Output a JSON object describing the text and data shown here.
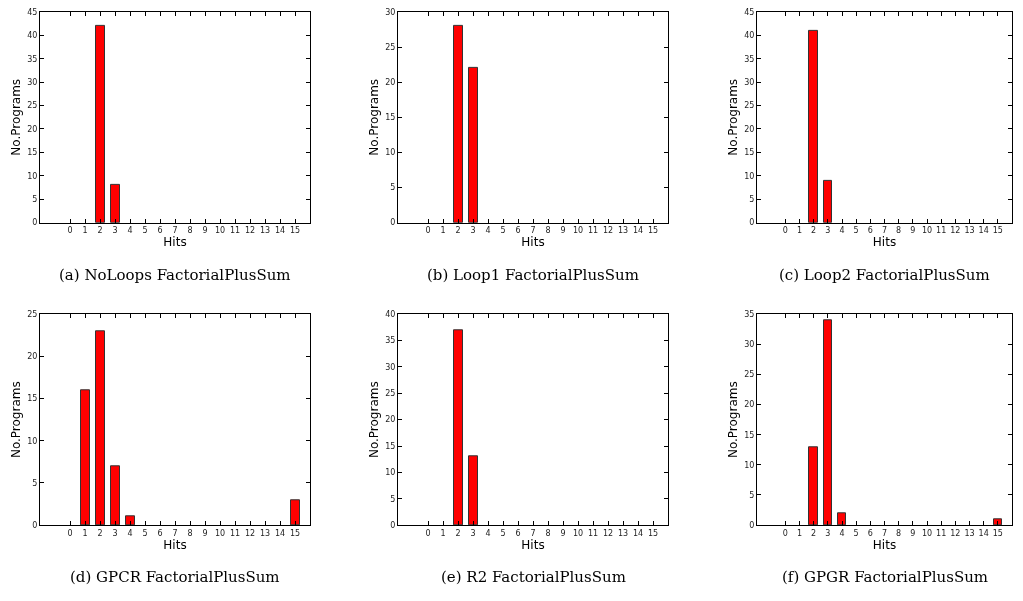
{
  "chart_data": [
    {
      "type": "bar",
      "title": "(a) NoLoops FactorialPlusSum",
      "xlabel": "Hits",
      "ylabel": "No.Programs",
      "x": [
        2,
        3
      ],
      "values": [
        42,
        8
      ],
      "color": "#ff0000",
      "xlim": [
        -2,
        16
      ],
      "xticks": [
        0,
        1,
        2,
        3,
        4,
        5,
        6,
        7,
        8,
        9,
        10,
        11,
        12,
        13,
        14,
        15
      ],
      "ylim": [
        0,
        45
      ],
      "yticks": [
        0,
        5,
        10,
        15,
        20,
        25,
        30,
        35,
        40,
        45
      ]
    },
    {
      "type": "bar",
      "title": "(b) Loop1 FactorialPlusSum",
      "xlabel": "Hits",
      "ylabel": "No.Programs",
      "x": [
        2,
        3
      ],
      "values": [
        28,
        22
      ],
      "color": "#ff0000",
      "xlim": [
        -2,
        16
      ],
      "xticks": [
        0,
        1,
        2,
        3,
        4,
        5,
        6,
        7,
        8,
        9,
        10,
        11,
        12,
        13,
        14,
        15
      ],
      "ylim": [
        0,
        30
      ],
      "yticks": [
        0,
        5,
        10,
        15,
        20,
        25,
        30
      ]
    },
    {
      "type": "bar",
      "title": "(c) Loop2 FactorialPlusSum",
      "xlabel": "Hits",
      "ylabel": "No.Programs",
      "x": [
        2,
        3
      ],
      "values": [
        41,
        9
      ],
      "color": "#ff0000",
      "xlim": [
        -2,
        16
      ],
      "xticks": [
        0,
        1,
        2,
        3,
        4,
        5,
        6,
        7,
        8,
        9,
        10,
        11,
        12,
        13,
        14,
        15
      ],
      "ylim": [
        0,
        45
      ],
      "yticks": [
        0,
        5,
        10,
        15,
        20,
        25,
        30,
        35,
        40,
        45
      ]
    },
    {
      "type": "bar",
      "title": "(d) GPCR FactorialPlusSum",
      "xlabel": "Hits",
      "ylabel": "No.Programs",
      "x": [
        1,
        2,
        3,
        4,
        15
      ],
      "values": [
        16,
        23,
        7,
        1,
        3
      ],
      "color": "#ff0000",
      "xlim": [
        -2,
        16
      ],
      "xticks": [
        0,
        1,
        2,
        3,
        4,
        5,
        6,
        7,
        8,
        9,
        10,
        11,
        12,
        13,
        14,
        15
      ],
      "ylim": [
        0,
        25
      ],
      "yticks": [
        0,
        5,
        10,
        15,
        20,
        25
      ]
    },
    {
      "type": "bar",
      "title": "(e) R2 FactorialPlusSum",
      "xlabel": "Hits",
      "ylabel": "No.Programs",
      "x": [
        2,
        3
      ],
      "values": [
        37,
        13
      ],
      "color": "#ff0000",
      "xlim": [
        -2,
        16
      ],
      "xticks": [
        0,
        1,
        2,
        3,
        4,
        5,
        6,
        7,
        8,
        9,
        10,
        11,
        12,
        13,
        14,
        15
      ],
      "ylim": [
        0,
        40
      ],
      "yticks": [
        0,
        5,
        10,
        15,
        20,
        25,
        30,
        35,
        40
      ]
    },
    {
      "type": "bar",
      "title": "(f) GPGR FactorialPlusSum",
      "xlabel": "Hits",
      "ylabel": "No.Programs",
      "x": [
        2,
        3,
        4,
        15
      ],
      "values": [
        13,
        34,
        2,
        1
      ],
      "color": "#ff0000",
      "xlim": [
        -2,
        16
      ],
      "xticks": [
        0,
        1,
        2,
        3,
        4,
        5,
        6,
        7,
        8,
        9,
        10,
        11,
        12,
        13,
        14,
        15
      ],
      "ylim": [
        0,
        35
      ],
      "yticks": [
        0,
        5,
        10,
        15,
        20,
        25,
        30,
        35
      ]
    }
  ]
}
